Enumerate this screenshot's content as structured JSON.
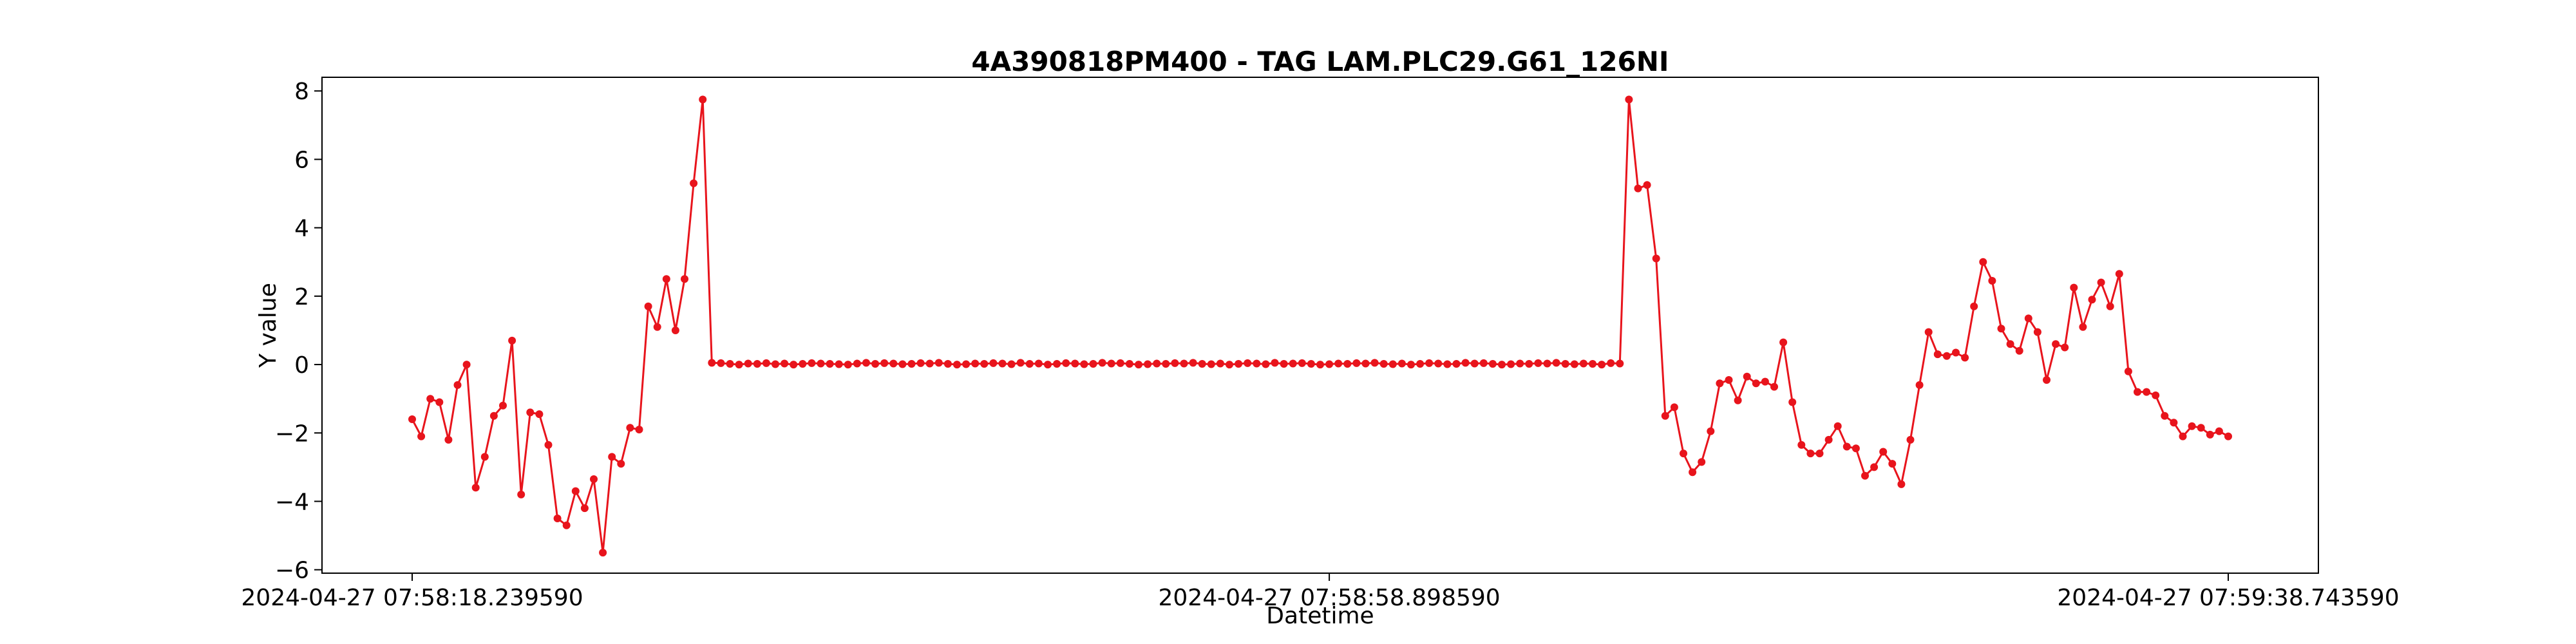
{
  "chart_data": {
    "type": "line",
    "title": "4A390818PM400 - TAG LAM.PLC29.G61_126NI",
    "xlabel": "Datetime",
    "ylabel": "Y value",
    "ylim": [
      -6.1,
      8.4
    ],
    "yticks": [
      -6,
      -4,
      -2,
      0,
      2,
      4,
      6,
      8
    ],
    "xticks": [
      {
        "label": "2024-04-27 07:58:18.239590",
        "index": 0
      },
      {
        "label": "2024-04-27 07:58:58.898590",
        "index": 101
      },
      {
        "label": "2024-04-27 07:59:38.743590",
        "index": 200
      }
    ],
    "grid": false,
    "legend": "none",
    "line_color": "#e8141c",
    "marker_color": "#e8141c",
    "series": [
      {
        "values": [
          -1.6,
          -2.1,
          -1.0,
          -1.1,
          -2.2,
          -0.6,
          0.0,
          -3.6,
          -2.7,
          -1.5,
          -1.2,
          0.7,
          -3.8,
          -1.4,
          -1.45,
          -2.35,
          -4.5,
          -4.7,
          -3.7,
          -4.2,
          -3.35,
          -5.5,
          -2.7,
          -2.9,
          -1.85,
          -1.9,
          1.7,
          1.1,
          2.5,
          1.0,
          2.5,
          5.3,
          7.75,
          0.05,
          0.04,
          0.02,
          0.0,
          0.03,
          0.02,
          0.04,
          0.01,
          0.03,
          0.0,
          0.02,
          0.04,
          0.03,
          0.02,
          0.01,
          0.0,
          0.03,
          0.05,
          0.02,
          0.04,
          0.03,
          0.01,
          0.02,
          0.04,
          0.03,
          0.05,
          0.02,
          0.0,
          0.01,
          0.03,
          0.02,
          0.04,
          0.03,
          0.01,
          0.05,
          0.02,
          0.03,
          0.0,
          0.02,
          0.04,
          0.03,
          0.01,
          0.02,
          0.05,
          0.03,
          0.04,
          0.02,
          0.0,
          0.01,
          0.03,
          0.02,
          0.04,
          0.03,
          0.05,
          0.02,
          0.01,
          0.03,
          0.0,
          0.02,
          0.04,
          0.03,
          0.01,
          0.05,
          0.02,
          0.03,
          0.04,
          0.02,
          0.0,
          0.01,
          0.03,
          0.02,
          0.04,
          0.03,
          0.05,
          0.02,
          0.01,
          0.03,
          0.0,
          0.02,
          0.04,
          0.03,
          0.01,
          0.02,
          0.05,
          0.03,
          0.04,
          0.02,
          0.0,
          0.01,
          0.03,
          0.02,
          0.04,
          0.03,
          0.05,
          0.02,
          0.01,
          0.03,
          0.02,
          0.0,
          0.04,
          0.03,
          7.75,
          5.15,
          5.25,
          3.1,
          -1.5,
          -1.25,
          -2.6,
          -3.15,
          -2.85,
          -1.95,
          -0.55,
          -0.45,
          -1.05,
          -0.35,
          -0.55,
          -0.5,
          -0.65,
          0.65,
          -1.1,
          -2.35,
          -2.6,
          -2.6,
          -2.2,
          -1.8,
          -2.4,
          -2.45,
          -3.25,
          -3.0,
          -2.55,
          -2.9,
          -3.5,
          -2.2,
          -0.6,
          0.95,
          0.3,
          0.25,
          0.35,
          0.2,
          1.7,
          3.0,
          2.45,
          1.05,
          0.6,
          0.4,
          1.35,
          0.95,
          -0.45,
          0.6,
          0.5,
          2.25,
          1.1,
          1.9,
          2.4,
          1.7,
          2.65,
          -0.2,
          -0.8,
          -0.8,
          -0.9,
          -1.5,
          -1.7,
          -2.1,
          -1.8,
          -1.85,
          -2.05,
          -1.95,
          -2.1
        ]
      }
    ]
  }
}
